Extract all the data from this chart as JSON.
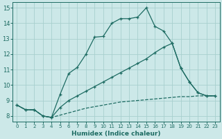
{
  "bg_color": "#cce8e8",
  "grid_color": "#a8d0ce",
  "line_color": "#1d6b62",
  "xlabel": "Humidex (Indice chaleur)",
  "xlim": [
    -0.5,
    23.5
  ],
  "ylim": [
    7.65,
    15.35
  ],
  "xtick_pos": [
    0,
    1,
    2,
    3,
    4,
    5,
    6,
    7,
    8,
    9,
    10,
    11,
    12,
    13,
    14,
    15,
    16,
    17,
    18,
    19,
    20,
    21,
    22,
    23
  ],
  "ytick_pos": [
    8,
    9,
    10,
    11,
    12,
    13,
    14,
    15
  ],
  "line1_x": [
    0,
    1,
    2,
    3,
    4,
    5,
    6,
    7,
    8,
    9,
    10,
    11,
    12,
    13,
    14,
    15,
    16,
    17,
    18,
    19,
    20,
    21,
    22,
    23
  ],
  "line1_y": [
    8.7,
    8.4,
    8.4,
    8.0,
    7.9,
    9.4,
    10.75,
    11.15,
    12.0,
    13.1,
    13.15,
    14.0,
    14.3,
    14.3,
    14.4,
    15.0,
    13.8,
    13.5,
    12.7,
    11.1,
    10.2,
    9.5,
    9.3,
    9.3
  ],
  "line2_x": [
    0,
    1,
    2,
    3,
    4,
    5,
    6,
    7,
    8,
    9,
    10,
    11,
    12,
    13,
    14,
    15,
    16,
    17,
    18,
    19,
    20,
    21,
    22,
    23
  ],
  "line2_y": [
    8.7,
    8.4,
    8.4,
    8.0,
    7.9,
    8.55,
    9.0,
    9.3,
    9.6,
    9.9,
    10.2,
    10.5,
    10.8,
    11.1,
    11.4,
    11.7,
    12.1,
    12.45,
    12.7,
    11.1,
    10.2,
    9.5,
    9.3,
    9.3
  ],
  "line3_x": [
    0,
    1,
    2,
    3,
    4,
    5,
    6,
    7,
    8,
    9,
    10,
    11,
    12,
    13,
    14,
    15,
    16,
    17,
    18,
    19,
    20,
    21,
    22,
    23
  ],
  "line3_y": [
    8.7,
    8.4,
    8.4,
    8.0,
    7.9,
    8.05,
    8.2,
    8.35,
    8.5,
    8.6,
    8.7,
    8.8,
    8.9,
    8.95,
    9.0,
    9.05,
    9.1,
    9.15,
    9.2,
    9.25,
    9.25,
    9.3,
    9.3,
    9.3
  ]
}
